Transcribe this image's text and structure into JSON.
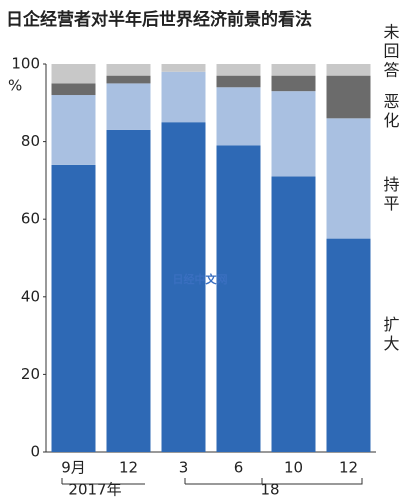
{
  "chart_data": {
    "type": "stacked-bar",
    "title": "日企经营者对半年后世界经济前景的看法",
    "y_unit": "%",
    "categories": [
      "9月",
      "12",
      "3",
      "6",
      "10",
      "12"
    ],
    "x_groups": [
      "2017年",
      "18"
    ],
    "series": [
      {
        "name": "扩大",
        "color": "#2e69b5",
        "values": [
          74,
          83,
          85,
          79,
          71,
          55
        ]
      },
      {
        "name": "持平",
        "color": "#a9c0e1",
        "values": [
          18,
          12,
          13,
          15,
          22,
          31
        ]
      },
      {
        "name": "恶化",
        "color": "#6b6b6b",
        "values": [
          3,
          2,
          0,
          3,
          4,
          11
        ]
      },
      {
        "name": "未回答",
        "color": "#c8c8c8",
        "values": [
          5,
          3,
          2,
          3,
          3,
          3
        ]
      }
    ],
    "ylim": [
      0,
      100
    ],
    "yticks": [
      0,
      20,
      40,
      60,
      80,
      100
    ],
    "watermark": "日经中文网"
  }
}
